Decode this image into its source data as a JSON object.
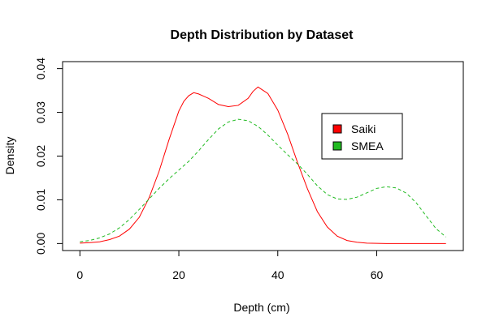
{
  "chart_data": {
    "type": "line",
    "title": "Depth Distribution by Dataset",
    "xlabel": "Depth (cm)",
    "ylabel": "Density",
    "xlim": [
      -3.5,
      77.5
    ],
    "ylim": [
      -0.0016,
      0.0416
    ],
    "x_ticks": [
      0,
      20,
      40,
      60
    ],
    "y_ticks": [
      0.0,
      0.01,
      0.02,
      0.03,
      0.04
    ],
    "x_tick_labels": [
      "0",
      "20",
      "40",
      "60"
    ],
    "y_tick_labels": [
      "0.00",
      "0.01",
      "0.02",
      "0.03",
      "0.04"
    ],
    "grid": false,
    "legend_position": "upper-right",
    "legend_title": "",
    "series": [
      {
        "name": "Saiki",
        "color": "#ff0000",
        "line_style": "solid",
        "x": [
          0,
          2,
          4,
          6,
          8,
          10,
          12,
          14,
          16,
          18,
          20,
          21,
          22,
          23,
          24,
          26,
          28,
          30,
          32,
          34,
          35,
          36,
          38,
          40,
          42,
          44,
          46,
          48,
          50,
          52,
          54,
          56,
          58,
          60,
          62,
          64,
          66,
          68,
          70,
          72,
          74
        ],
        "y": [
          0.0001,
          0.0002,
          0.0004,
          0.0009,
          0.0017,
          0.0033,
          0.006,
          0.0105,
          0.0165,
          0.0237,
          0.0303,
          0.0325,
          0.0338,
          0.0345,
          0.0342,
          0.0332,
          0.0318,
          0.0313,
          0.0316,
          0.0332,
          0.0348,
          0.0358,
          0.0343,
          0.0305,
          0.025,
          0.0185,
          0.0125,
          0.0073,
          0.0038,
          0.0017,
          0.0007,
          0.0003,
          0.0001,
          5e-05,
          0.0,
          0.0,
          0.0,
          0.0,
          0.0,
          0.0,
          0.0
        ]
      },
      {
        "name": "SMEA",
        "color": "#22bb22",
        "line_style": "dashed",
        "x": [
          0,
          2,
          4,
          6,
          8,
          10,
          12,
          14,
          16,
          18,
          20,
          22,
          24,
          26,
          28,
          30,
          32,
          34,
          36,
          38,
          40,
          42,
          44,
          46,
          48,
          50,
          52,
          54,
          56,
          58,
          60,
          62,
          64,
          66,
          68,
          70,
          72,
          74
        ],
        "y": [
          0.0004,
          0.0007,
          0.0013,
          0.0022,
          0.0036,
          0.0055,
          0.0078,
          0.0102,
          0.0126,
          0.0148,
          0.0168,
          0.0188,
          0.0212,
          0.0238,
          0.0262,
          0.0278,
          0.0284,
          0.0281,
          0.0268,
          0.0248,
          0.0225,
          0.0203,
          0.0182,
          0.0158,
          0.0132,
          0.0112,
          0.0102,
          0.0101,
          0.0106,
          0.0116,
          0.0126,
          0.013,
          0.0127,
          0.0115,
          0.0093,
          0.0063,
          0.0034,
          0.0015
        ]
      }
    ]
  }
}
